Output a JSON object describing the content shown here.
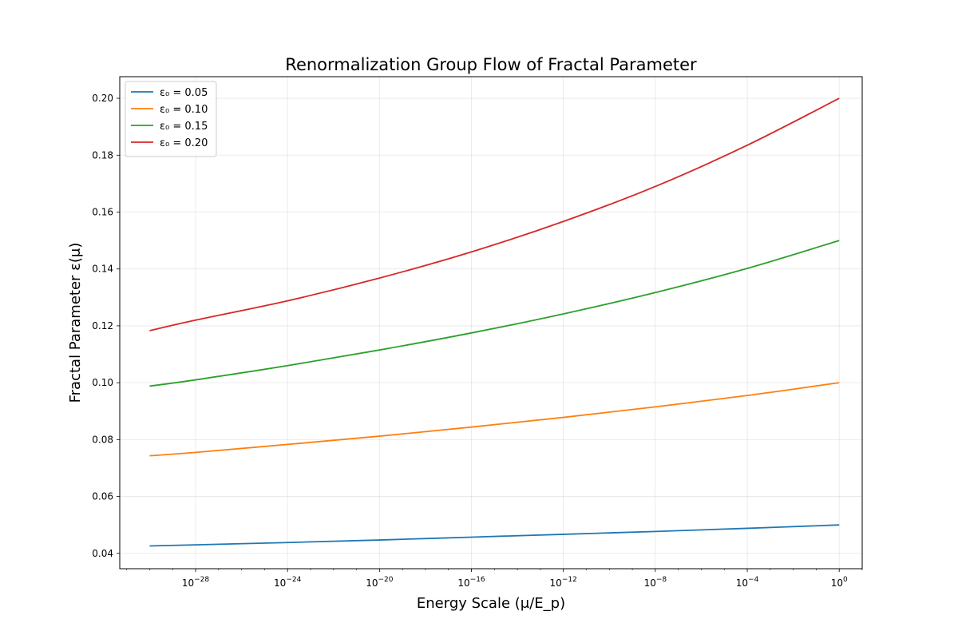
{
  "chart_data": {
    "type": "line",
    "title": "Renormalization Group Flow of Fractal Parameter",
    "xlabel": "Energy Scale (μ/E_p)",
    "ylabel": "Fractal Parameter ε(μ)",
    "xscale": "log",
    "xlim_exponent": [
      -31.3,
      1.0
    ],
    "ylim": [
      0.0346,
      0.2076
    ],
    "grid": true,
    "legend_position": "top-left",
    "x_ticks": [
      {
        "exp": -28,
        "base": "10",
        "sup": "−28"
      },
      {
        "exp": -24,
        "base": "10",
        "sup": "−24"
      },
      {
        "exp": -20,
        "base": "10",
        "sup": "−20"
      },
      {
        "exp": -16,
        "base": "10",
        "sup": "−16"
      },
      {
        "exp": -12,
        "base": "10",
        "sup": "−12"
      },
      {
        "exp": -8,
        "base": "10",
        "sup": "−8"
      },
      {
        "exp": -4,
        "base": "10",
        "sup": "−4"
      },
      {
        "exp": 0,
        "base": "10",
        "sup": "0"
      }
    ],
    "y_ticks": [
      {
        "value": 0.04,
        "label": "0.04"
      },
      {
        "value": 0.06,
        "label": "0.06"
      },
      {
        "value": 0.08,
        "label": "0.08"
      },
      {
        "value": 0.1,
        "label": "0.10"
      },
      {
        "value": 0.12,
        "label": "0.12"
      },
      {
        "value": 0.14,
        "label": "0.14"
      },
      {
        "value": 0.16,
        "label": "0.16"
      },
      {
        "value": 0.18,
        "label": "0.18"
      },
      {
        "value": 0.2,
        "label": "0.20"
      }
    ],
    "series": [
      {
        "name": "ε₀ = 0.05",
        "color": "#1f77b4",
        "x_exp": [
          -30,
          -28,
          -24,
          -20,
          -16,
          -12,
          -8,
          -4,
          0
        ],
        "y": [
          0.0426,
          0.043,
          0.0438,
          0.0447,
          0.0457,
          0.0467,
          0.0477,
          0.0488,
          0.05
        ]
      },
      {
        "name": "ε₀ = 0.10",
        "color": "#ff7f0e",
        "x_exp": [
          -30,
          -28,
          -24,
          -20,
          -16,
          -12,
          -8,
          -4,
          0
        ],
        "y": [
          0.0743,
          0.0755,
          0.0783,
          0.0812,
          0.0844,
          0.0878,
          0.0915,
          0.0955,
          0.1
        ]
      },
      {
        "name": "ε₀ = 0.15",
        "color": "#2ca02c",
        "x_exp": [
          -30,
          -28,
          -24,
          -20,
          -16,
          -12,
          -8,
          -4,
          0
        ],
        "y": [
          0.0988,
          0.101,
          0.106,
          0.1115,
          0.1175,
          0.1242,
          0.1317,
          0.1402,
          0.15
        ]
      },
      {
        "name": "ε₀ = 0.20",
        "color": "#d62728",
        "x_exp": [
          -30,
          -28,
          -24,
          -20,
          -16,
          -12,
          -8,
          -4,
          0
        ],
        "y": [
          0.1183,
          0.122,
          0.1288,
          0.1368,
          0.146,
          0.1567,
          0.169,
          0.1835,
          0.2
        ]
      }
    ]
  }
}
